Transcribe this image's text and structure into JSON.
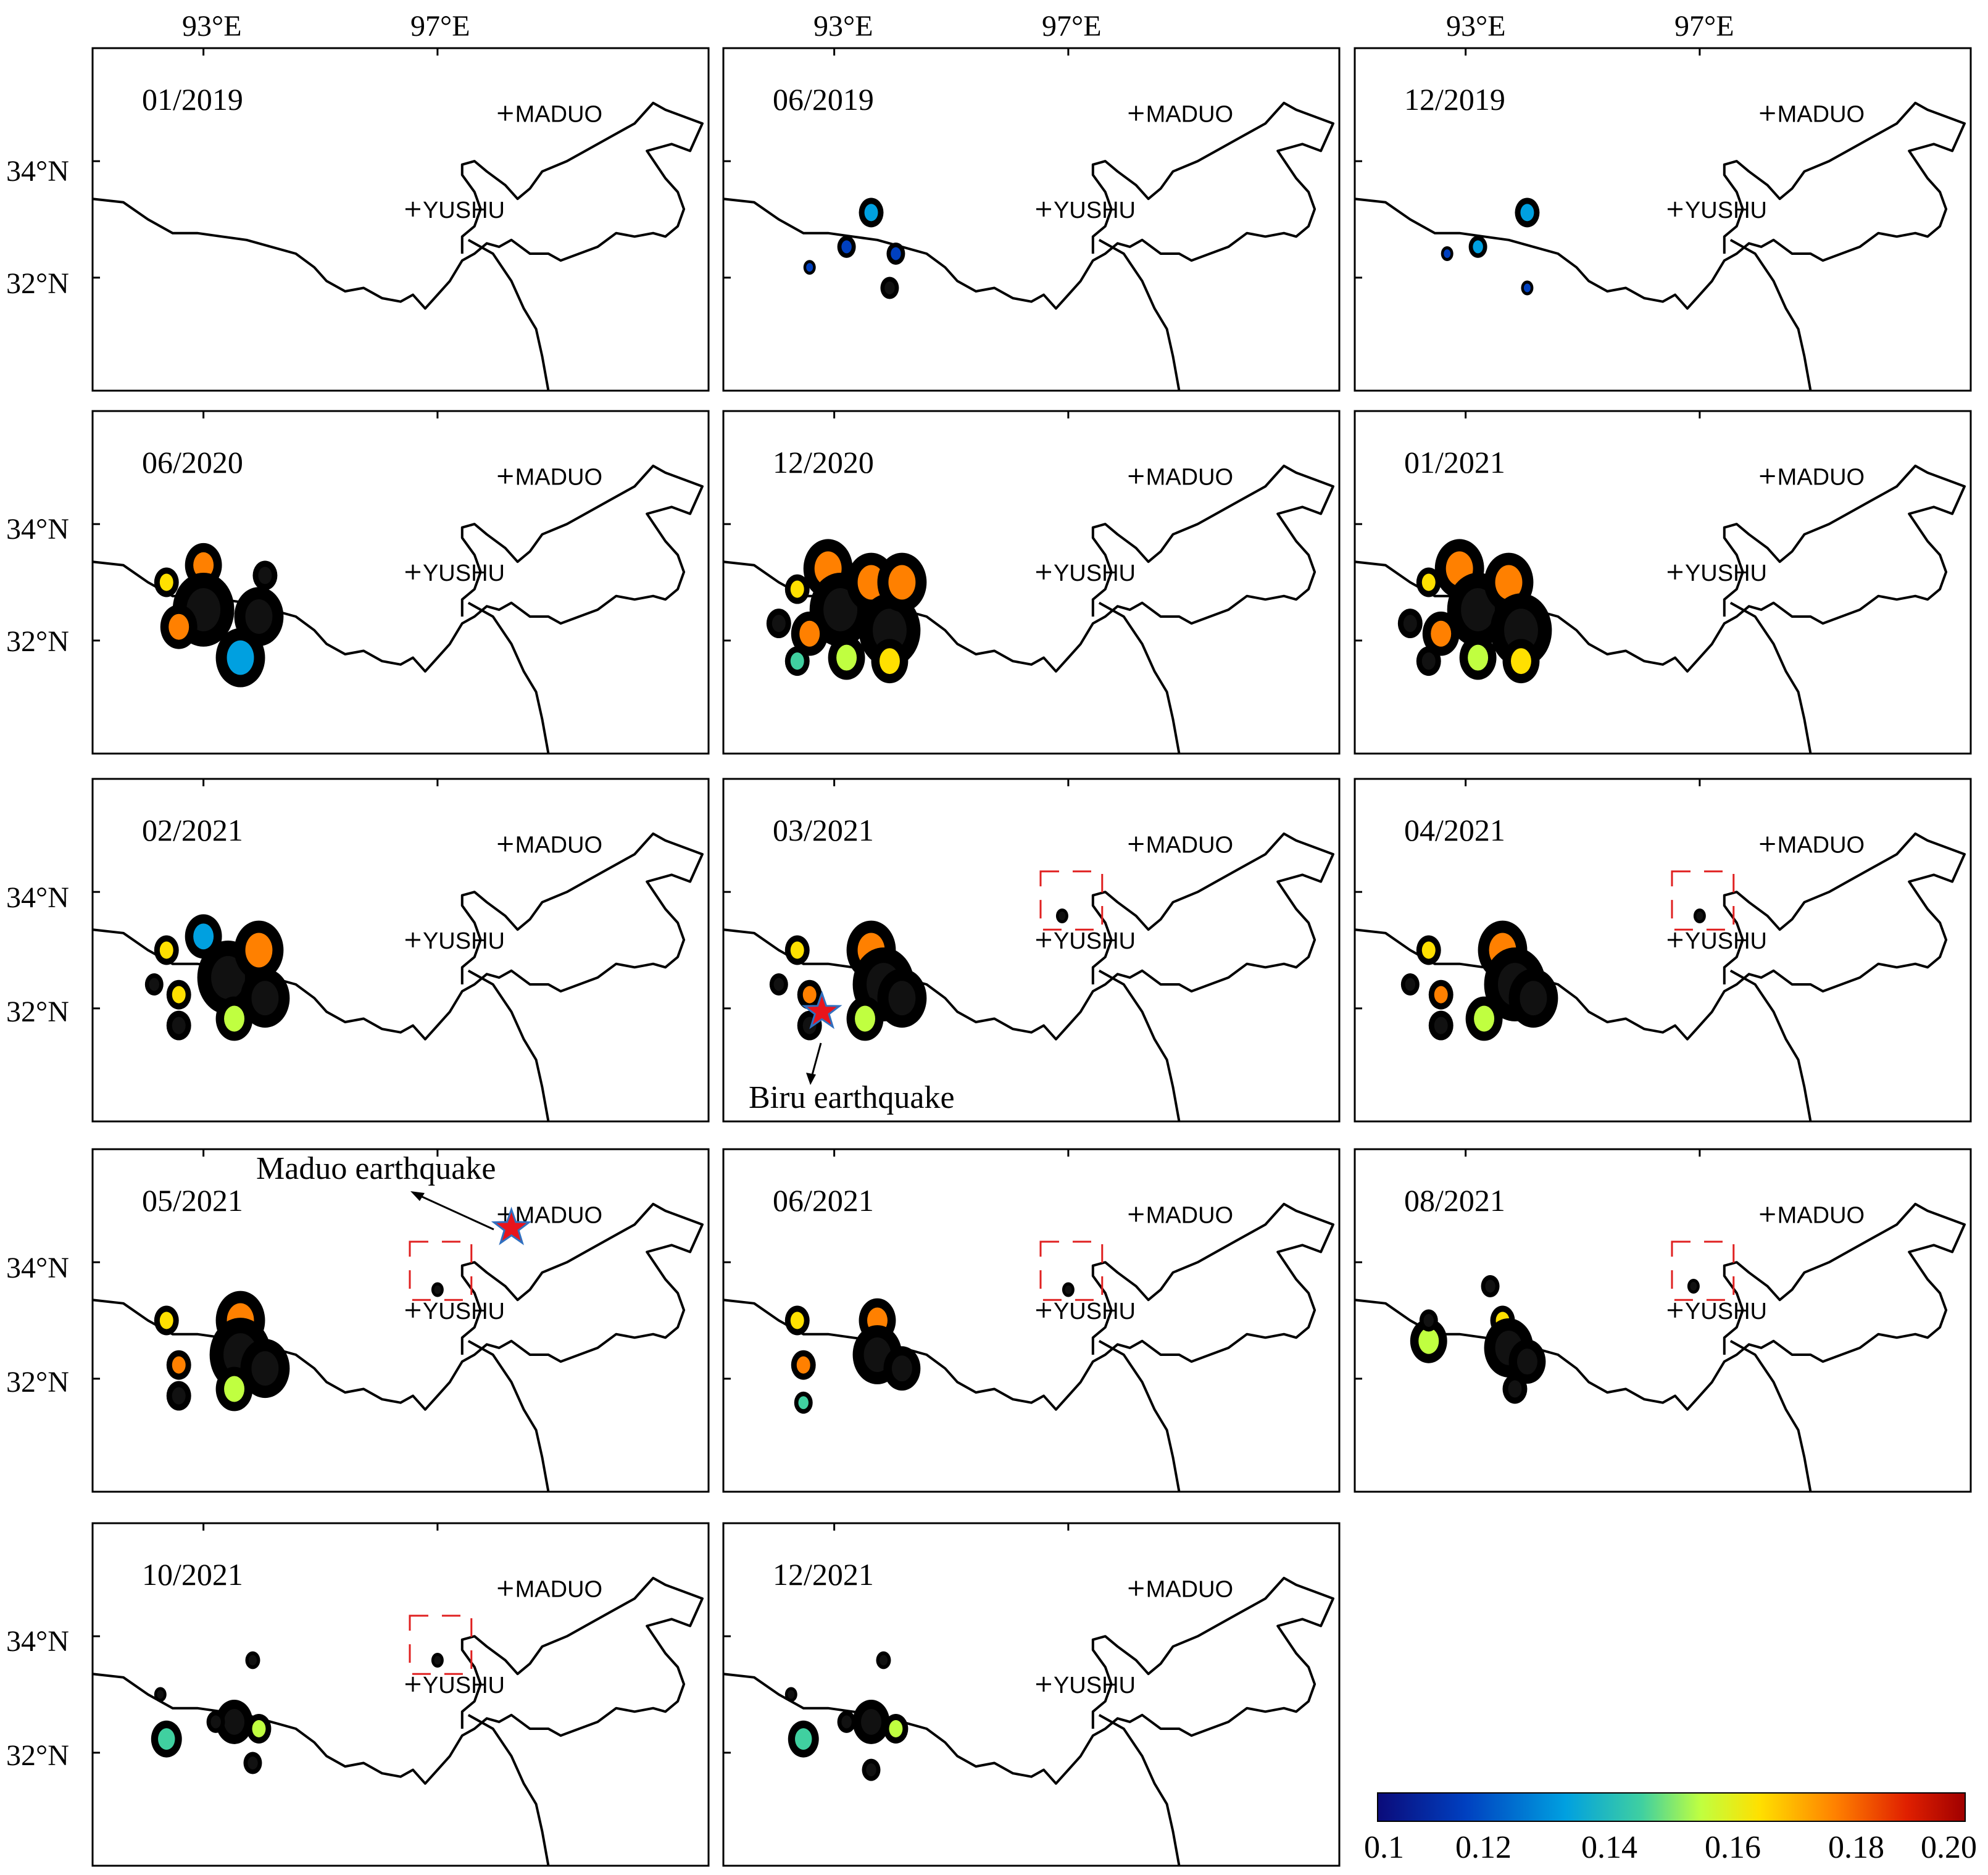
{
  "figure": {
    "top_axis_labels": [
      "93°E",
      "97°E"
    ],
    "left_axis_labels": [
      "34°N",
      "32°N"
    ],
    "cities": {
      "maduo": "MADUO",
      "yushu": "YUSHU"
    },
    "panels": [
      {
        "date": "01/2019",
        "blobs": [],
        "box": false
      },
      {
        "date": "06/2019",
        "blobs": [
          [
            0.24,
            0.48,
            0.02,
            0.2
          ],
          [
            0.2,
            0.58,
            0.015,
            0.15
          ],
          [
            0.28,
            0.6,
            0.015,
            0.15
          ],
          [
            0.14,
            0.64,
            0.01,
            0.1
          ],
          [
            0.27,
            0.7,
            0.015,
            0.9
          ]
        ],
        "box": false
      },
      {
        "date": "12/2019",
        "blobs": [
          [
            0.28,
            0.48,
            0.02,
            0.2
          ],
          [
            0.2,
            0.58,
            0.015,
            0.3
          ],
          [
            0.15,
            0.6,
            0.01,
            0.1
          ],
          [
            0.28,
            0.7,
            0.01,
            0.1
          ]
        ],
        "box": false
      },
      {
        "date": "06/2020",
        "blobs": [
          [
            0.12,
            0.5,
            0.02,
            0.6
          ],
          [
            0.18,
            0.45,
            0.03,
            0.7
          ],
          [
            0.18,
            0.58,
            0.05,
            0.9
          ],
          [
            0.27,
            0.6,
            0.04,
            0.9
          ],
          [
            0.28,
            0.48,
            0.02,
            0.9
          ],
          [
            0.14,
            0.63,
            0.03,
            0.7
          ],
          [
            0.24,
            0.72,
            0.04,
            0.3
          ]
        ],
        "box": false
      },
      {
        "date": "12/2020",
        "blobs": [
          [
            0.12,
            0.52,
            0.02,
            0.6
          ],
          [
            0.17,
            0.46,
            0.04,
            0.7
          ],
          [
            0.19,
            0.58,
            0.05,
            0.9
          ],
          [
            0.24,
            0.5,
            0.04,
            0.8
          ],
          [
            0.27,
            0.64,
            0.05,
            0.9
          ],
          [
            0.29,
            0.5,
            0.04,
            0.8
          ],
          [
            0.14,
            0.65,
            0.03,
            0.8
          ],
          [
            0.12,
            0.73,
            0.02,
            0.4
          ],
          [
            0.2,
            0.72,
            0.03,
            0.5
          ],
          [
            0.27,
            0.73,
            0.03,
            0.6
          ],
          [
            0.09,
            0.62,
            0.02,
            0.9
          ]
        ],
        "box": false
      },
      {
        "date": "01/2021",
        "blobs": [
          [
            0.12,
            0.5,
            0.02,
            0.6
          ],
          [
            0.17,
            0.46,
            0.04,
            0.7
          ],
          [
            0.2,
            0.58,
            0.05,
            0.9
          ],
          [
            0.25,
            0.5,
            0.04,
            0.8
          ],
          [
            0.27,
            0.64,
            0.05,
            0.9
          ],
          [
            0.14,
            0.65,
            0.03,
            0.8
          ],
          [
            0.12,
            0.73,
            0.02,
            0.9
          ],
          [
            0.2,
            0.72,
            0.03,
            0.5
          ],
          [
            0.27,
            0.73,
            0.03,
            0.6
          ],
          [
            0.09,
            0.62,
            0.02,
            0.9
          ]
        ],
        "box": false
      },
      {
        "date": "02/2021",
        "blobs": [
          [
            0.12,
            0.5,
            0.02,
            0.6
          ],
          [
            0.18,
            0.46,
            0.03,
            0.3
          ],
          [
            0.22,
            0.58,
            0.05,
            0.9
          ],
          [
            0.27,
            0.5,
            0.04,
            0.8
          ],
          [
            0.28,
            0.64,
            0.04,
            0.9
          ],
          [
            0.14,
            0.63,
            0.02,
            0.6
          ],
          [
            0.14,
            0.72,
            0.02,
            0.9
          ],
          [
            0.23,
            0.7,
            0.03,
            0.5
          ],
          [
            0.1,
            0.6,
            0.015,
            0.9
          ]
        ],
        "box": false
      },
      {
        "date": "03/2021",
        "blobs": [
          [
            0.12,
            0.5,
            0.02,
            0.6
          ],
          [
            0.24,
            0.5,
            0.04,
            0.8
          ],
          [
            0.26,
            0.6,
            0.05,
            0.9
          ],
          [
            0.29,
            0.64,
            0.04,
            0.9
          ],
          [
            0.14,
            0.63,
            0.02,
            0.7
          ],
          [
            0.14,
            0.72,
            0.02,
            0.9
          ],
          [
            0.23,
            0.7,
            0.03,
            0.5
          ],
          [
            0.09,
            0.6,
            0.015,
            0.9
          ],
          [
            0.55,
            0.4,
            0.01,
            0.9
          ]
        ],
        "box": true,
        "star": [
          0.16,
          0.68
        ]
      },
      {
        "date": "04/2021",
        "blobs": [
          [
            0.12,
            0.5,
            0.02,
            0.6
          ],
          [
            0.24,
            0.5,
            0.04,
            0.8
          ],
          [
            0.26,
            0.6,
            0.05,
            0.9
          ],
          [
            0.29,
            0.64,
            0.04,
            0.9
          ],
          [
            0.14,
            0.63,
            0.02,
            0.7
          ],
          [
            0.14,
            0.72,
            0.02,
            0.9
          ],
          [
            0.21,
            0.7,
            0.03,
            0.5
          ],
          [
            0.09,
            0.6,
            0.015,
            0.9
          ],
          [
            0.56,
            0.4,
            0.01,
            0.9
          ]
        ],
        "box": true
      },
      {
        "date": "05/2021",
        "blobs": [
          [
            0.12,
            0.5,
            0.02,
            0.6
          ],
          [
            0.24,
            0.5,
            0.04,
            0.8
          ],
          [
            0.24,
            0.6,
            0.05,
            0.9
          ],
          [
            0.28,
            0.64,
            0.04,
            0.9
          ],
          [
            0.14,
            0.63,
            0.02,
            0.7
          ],
          [
            0.14,
            0.72,
            0.02,
            0.9
          ],
          [
            0.23,
            0.7,
            0.03,
            0.5
          ],
          [
            0.56,
            0.41,
            0.01,
            0.9
          ]
        ],
        "box": true,
        "star": [
          0.68,
          0.23
        ]
      },
      {
        "date": "06/2021",
        "blobs": [
          [
            0.12,
            0.5,
            0.02,
            0.6
          ],
          [
            0.25,
            0.5,
            0.03,
            0.8
          ],
          [
            0.25,
            0.6,
            0.04,
            0.9
          ],
          [
            0.29,
            0.64,
            0.03,
            0.9
          ],
          [
            0.13,
            0.63,
            0.02,
            0.7
          ],
          [
            0.13,
            0.74,
            0.015,
            0.4
          ],
          [
            0.56,
            0.41,
            0.01,
            0.9
          ]
        ],
        "box": true
      },
      {
        "date": "08/2021",
        "blobs": [
          [
            0.12,
            0.56,
            0.03,
            0.5
          ],
          [
            0.24,
            0.5,
            0.02,
            0.6
          ],
          [
            0.25,
            0.58,
            0.04,
            0.9
          ],
          [
            0.28,
            0.62,
            0.03,
            0.9
          ],
          [
            0.26,
            0.7,
            0.02,
            0.9
          ],
          [
            0.12,
            0.5,
            0.015,
            0.9
          ],
          [
            0.22,
            0.4,
            0.015,
            0.9
          ],
          [
            0.55,
            0.4,
            0.01,
            0.9
          ]
        ],
        "box": true
      },
      {
        "date": "10/2021",
        "blobs": [
          [
            0.12,
            0.63,
            0.025,
            0.4
          ],
          [
            0.23,
            0.58,
            0.03,
            0.9
          ],
          [
            0.27,
            0.6,
            0.02,
            0.5
          ],
          [
            0.26,
            0.7,
            0.015,
            0.9
          ],
          [
            0.2,
            0.58,
            0.015,
            0.9
          ],
          [
            0.11,
            0.5,
            0.01,
            0.9
          ],
          [
            0.26,
            0.4,
            0.012,
            0.9
          ],
          [
            0.56,
            0.4,
            0.01,
            0.9
          ]
        ],
        "box": true
      },
      {
        "date": "12/2021",
        "blobs": [
          [
            0.13,
            0.63,
            0.025,
            0.4
          ],
          [
            0.24,
            0.58,
            0.03,
            0.9
          ],
          [
            0.28,
            0.6,
            0.02,
            0.5
          ],
          [
            0.24,
            0.72,
            0.015,
            0.9
          ],
          [
            0.2,
            0.58,
            0.015,
            0.9
          ],
          [
            0.11,
            0.5,
            0.01,
            0.9
          ],
          [
            0.26,
            0.4,
            0.012,
            0.9
          ]
        ],
        "box": false
      }
    ]
  },
  "annotations": {
    "biru_earthquake": "Biru earthquake",
    "maduo_earthquake": "Maduo earthquake"
  },
  "colorbar": {
    "tick_labels": [
      "0.1",
      "0.12",
      "0.14",
      "0.16",
      "0.18",
      "0.20"
    ],
    "colors": [
      "#0b0b7a",
      "#0040c0",
      "#00a0e0",
      "#40d0a0",
      "#c0ff40",
      "#ffe000",
      "#ff8000",
      "#e02000",
      "#a00000"
    ]
  }
}
